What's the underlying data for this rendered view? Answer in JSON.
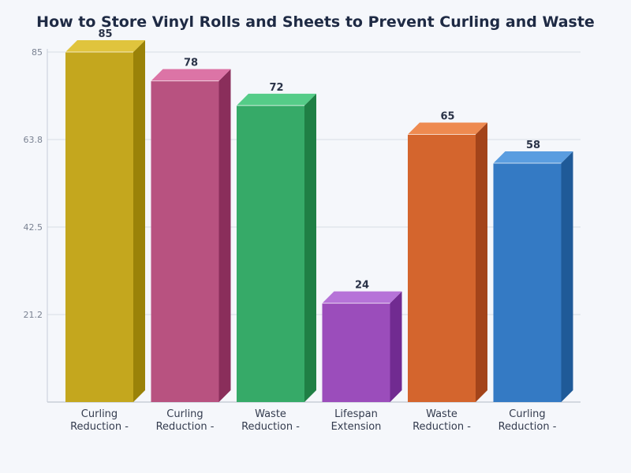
{
  "chart_data": {
    "type": "bar",
    "style": "3d",
    "title": "How to Store Vinyl Rolls and Sheets to Prevent Curling and Waste",
    "xlabel": "",
    "ylabel": "",
    "ylim": [
      0,
      85
    ],
    "yticks": [
      "21.2",
      "42.5",
      "63.8",
      "85"
    ],
    "ytick_values": [
      21.25,
      42.5,
      63.75,
      85
    ],
    "grid": true,
    "legend": "none",
    "categories": [
      [
        "Curling",
        "Reduction -"
      ],
      [
        "Curling",
        "Reduction -"
      ],
      [
        "Waste",
        "Reduction -"
      ],
      [
        "Lifespan",
        "Extension"
      ],
      [
        "Waste",
        "Reduction -"
      ],
      [
        "Curling",
        "Reduction -"
      ]
    ],
    "values": [
      85,
      78,
      72,
      24,
      65,
      58
    ],
    "data_labels": [
      "85",
      "78",
      "72",
      "24",
      "65",
      "58"
    ],
    "colors": [
      {
        "front": "#c4a71e",
        "top": "#e0c43d",
        "side": "#9a8208"
      },
      {
        "front": "#b85280",
        "top": "#dc74a6",
        "side": "#8a2e5b"
      },
      {
        "front": "#36aa68",
        "top": "#55cc88",
        "side": "#1f7f45"
      },
      {
        "front": "#9b4dbb",
        "top": "#b673d8",
        "side": "#712b91"
      },
      {
        "front": "#d4652d",
        "top": "#ee8a50",
        "side": "#a3441a"
      },
      {
        "front": "#347ac4",
        "top": "#5a9de0",
        "side": "#1f5a98"
      }
    ]
  }
}
